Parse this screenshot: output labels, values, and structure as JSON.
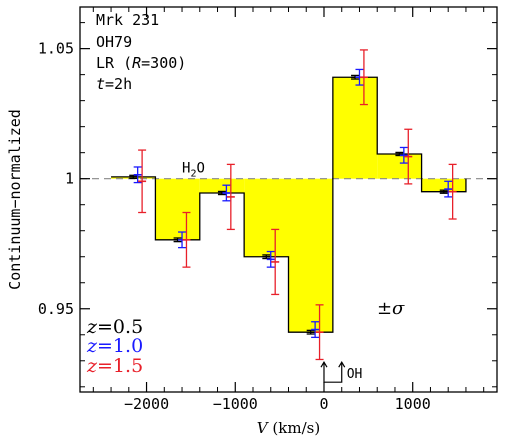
{
  "chart_data": {
    "type": "bar",
    "title": "",
    "xlabel": "V (km/s)",
    "ylabel": "Continuum−normalized",
    "xlim": [
      -2750,
      1950
    ],
    "ylim": [
      0.918,
      1.066
    ],
    "x_ticks": [
      -2000,
      -1000,
      0,
      1000
    ],
    "x_tick_labels": [
      "−2000",
      "−1000",
      "0",
      "1000"
    ],
    "y_ticks": [
      0.95,
      1.0,
      1.05
    ],
    "y_tick_labels": [
      "0.95",
      "1",
      "1.05"
    ],
    "reference_level": 1.0,
    "bins": [
      {
        "x0": -2400,
        "x1": -1900,
        "value": 1.0007
      },
      {
        "x0": -1900,
        "x1": -1400,
        "value": 0.9765
      },
      {
        "x0": -1400,
        "x1": -900,
        "value": 0.9945
      },
      {
        "x0": -900,
        "x1": -400,
        "value": 0.97
      },
      {
        "x0": -400,
        "x1": 100,
        "value": 0.941
      },
      {
        "x0": 100,
        "x1": 600,
        "value": 1.039
      },
      {
        "x0": 600,
        "x1": 1100,
        "value": 1.0095
      },
      {
        "x0": 1100,
        "x1": 1600,
        "value": 0.995
      }
    ],
    "series": [
      {
        "name": "z=0.5",
        "color": "#000000",
        "x": [
          -2150,
          -1650,
          -1150,
          -650,
          -150,
          350,
          850,
          1350
        ],
        "y": [
          1.0007,
          0.9765,
          0.9945,
          0.97,
          0.941,
          1.039,
          1.0095,
          0.995
        ],
        "err": [
          0.0006,
          0.0007,
          0.0006,
          0.0007,
          0.0007,
          0.0007,
          0.0006,
          0.0006
        ]
      },
      {
        "name": "z=1.0",
        "color": "#1a1aff",
        "x": [
          -2100,
          -1600,
          -1100,
          -600,
          -100,
          400,
          900,
          1400
        ],
        "y": [
          1.0015,
          0.9765,
          0.9945,
          0.969,
          0.942,
          1.039,
          1.009,
          0.996
        ],
        "err": [
          0.003,
          0.003,
          0.003,
          0.003,
          0.003,
          0.003,
          0.003,
          0.003
        ]
      },
      {
        "name": "z=1.5",
        "color": "#e8202a",
        "x": [
          -2050,
          -1550,
          -1050,
          -550,
          -50,
          450,
          950,
          1450
        ],
        "y": [
          0.999,
          0.9765,
          0.993,
          0.968,
          0.941,
          1.039,
          1.0085,
          0.995
        ],
        "err": [
          0.012,
          0.0105,
          0.0125,
          0.0125,
          0.0105,
          0.0105,
          0.0105,
          0.0105
        ]
      }
    ],
    "legend": {
      "placement": "bottom-left",
      "entries": [
        "z=0.5",
        "z=1.0",
        "z=1.5"
      ]
    },
    "info_lines": [
      "Mrk 231",
      "OH79",
      "LR (R=300)",
      "t=2h"
    ],
    "annotations": {
      "h2o": {
        "text": "H2O",
        "x": -1600,
        "y": 1.0023
      },
      "oh": {
        "text": "OH",
        "x": 0,
        "x2": 200,
        "y": 0.926
      },
      "sigma": {
        "text": "±σ",
        "x": 800,
        "y": 0.948
      }
    },
    "colors": {
      "fill": "#ffff00",
      "axis": "#000000",
      "dash": "#888888"
    }
  }
}
